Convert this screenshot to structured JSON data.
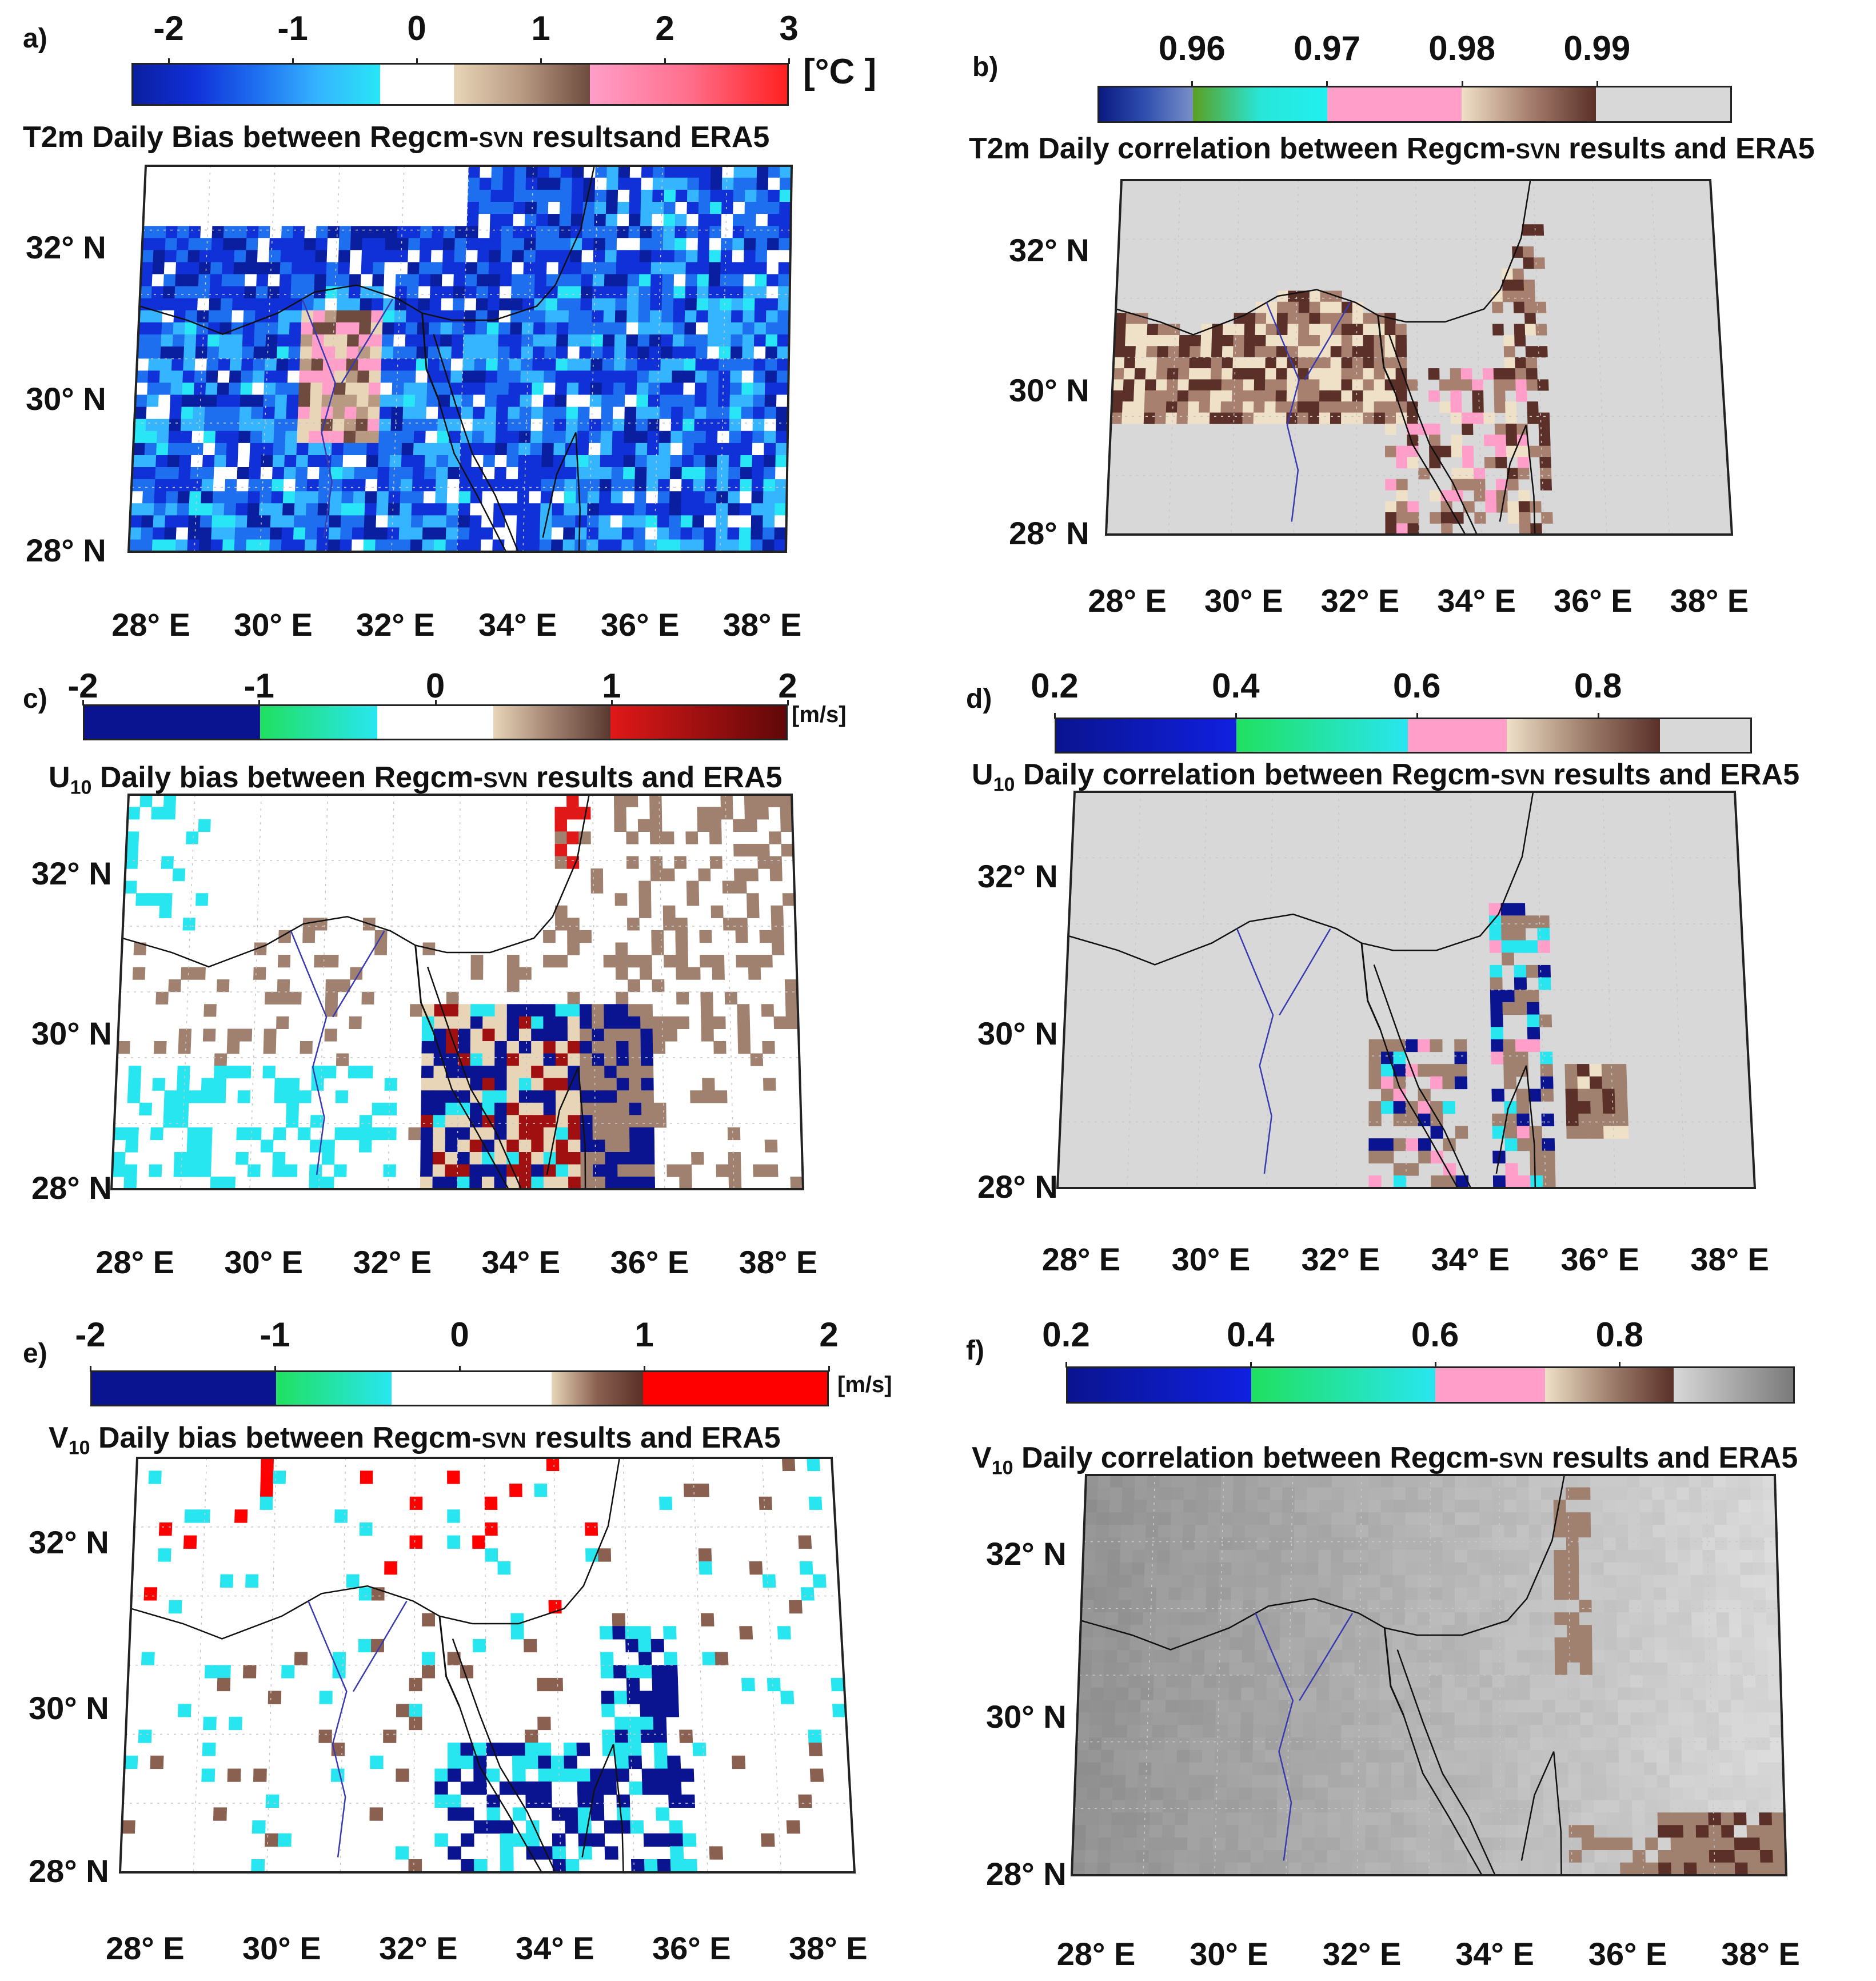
{
  "figure": {
    "panels": [
      {
        "id": "a",
        "label": "a)",
        "variable": "T2m",
        "title_pre": "T2m Daily Bias  between  Regcm-",
        "title_model": "SVN",
        "title_post": " resultsand ERA5",
        "colorbar": {
          "ticks": [
            "-2",
            "-1",
            "0",
            "1",
            "2",
            "3"
          ],
          "range": [
            -2.3,
            3
          ],
          "unit": "[°C ]",
          "segments": [
            {
              "from": -2.3,
              "to": -0.3,
              "colors": [
                "#0a1fa0",
                "#1030d8",
                "#1e6ff0",
                "#35b4ff",
                "#28e6f5"
              ]
            },
            {
              "from": -0.3,
              "to": 0.3,
              "colors": [
                "#ffffff"
              ]
            },
            {
              "from": 0.3,
              "to": 1.4,
              "colors": [
                "#e8d5b8",
                "#b89a82",
                "#6e4b3e"
              ]
            },
            {
              "from": 1.4,
              "to": 3,
              "colors": [
                "#ff9ec8",
                "#ff6f8c",
                "#ff2020"
              ]
            }
          ]
        },
        "background": "bias-blue"
      },
      {
        "id": "b",
        "label": "b)",
        "variable": "T2m",
        "title_pre": "T2m Daily correlation between Regcm-",
        "title_model": "SVN",
        "title_post": " results and ERA5",
        "colorbar": {
          "ticks": [
            "0.96",
            "0.97",
            "0.98",
            "0.99"
          ],
          "range": [
            0.953,
            1.0
          ],
          "unit": "",
          "segments": [
            {
              "from": 0.953,
              "to": 0.96,
              "colors": [
                "#0a1a80",
                "#3050b0",
                "#7a90c8"
              ]
            },
            {
              "from": 0.96,
              "to": 0.97,
              "colors": [
                "#5aa020",
                "#28e6d8",
                "#20f0f0"
              ]
            },
            {
              "from": 0.97,
              "to": 0.98,
              "colors": [
                "#ff9ec8"
              ]
            },
            {
              "from": 0.98,
              "to": 0.99,
              "colors": [
                "#efe0c8",
                "#a88070",
                "#5a3028"
              ]
            },
            {
              "from": 0.99,
              "to": 1.0,
              "colors": [
                "#d8d8d8"
              ]
            }
          ]
        },
        "background": "corr-grey"
      },
      {
        "id": "c",
        "label": "c)",
        "variable": "U10",
        "title_pre": "U",
        "title_sub": "10",
        "title_mid": " Daily bias between Regcm-",
        "title_model": "SVN",
        "title_post": " results and ERA5",
        "colorbar": {
          "ticks": [
            "-2",
            "-1",
            "0",
            "1",
            "2"
          ],
          "range": [
            -2,
            2
          ],
          "unit": "[m/s]",
          "segments": [
            {
              "from": -2,
              "to": -1,
              "colors": [
                "#0a1490"
              ]
            },
            {
              "from": -1,
              "to": -0.33,
              "colors": [
                "#20e060",
                "#28e6f0"
              ]
            },
            {
              "from": -0.33,
              "to": 0.33,
              "colors": [
                "#ffffff"
              ]
            },
            {
              "from": 0.33,
              "to": 1,
              "colors": [
                "#e8d5b8",
                "#a0806e",
                "#5a3a30"
              ]
            },
            {
              "from": 1,
              "to": 2,
              "colors": [
                "#e01818",
                "#a01010",
                "#600808"
              ]
            }
          ]
        },
        "background": "bias-white"
      },
      {
        "id": "d",
        "label": "d)",
        "variable": "U10",
        "title_pre": "U",
        "title_sub": "10",
        "title_mid": " Daily correlation between Regcm-",
        "title_model": "SVN",
        "title_post": " results and ERA5",
        "colorbar": {
          "ticks": [
            "0.2",
            "0.4",
            "0.6",
            "0.8"
          ],
          "range": [
            0.2,
            0.97
          ],
          "unit": "",
          "segments": [
            {
              "from": 0.2,
              "to": 0.4,
              "colors": [
                "#0a1490",
                "#1020e0"
              ]
            },
            {
              "from": 0.4,
              "to": 0.59,
              "colors": [
                "#20e060",
                "#28e6f0"
              ]
            },
            {
              "from": 0.59,
              "to": 0.7,
              "colors": [
                "#ff9ec8"
              ]
            },
            {
              "from": 0.7,
              "to": 0.87,
              "colors": [
                "#efe0c8",
                "#a0806e",
                "#5a3028"
              ]
            },
            {
              "from": 0.87,
              "to": 0.97,
              "colors": [
                "#d8d8d8"
              ]
            }
          ]
        },
        "background": "corr-grey"
      },
      {
        "id": "e",
        "label": "e)",
        "variable": "V10",
        "title_pre": "V",
        "title_sub": "10",
        "title_mid": " Daily bias between Regcm-",
        "title_model": "SVN",
        "title_post": " results and ERA5",
        "colorbar": {
          "ticks": [
            "-2",
            "-1",
            "0",
            "1",
            "2"
          ],
          "range": [
            -2,
            2
          ],
          "unit": "[m/s]",
          "segments": [
            {
              "from": -2,
              "to": -1,
              "colors": [
                "#0a1490"
              ]
            },
            {
              "from": -1,
              "to": -0.37,
              "colors": [
                "#20e060",
                "#28e6f0"
              ]
            },
            {
              "from": -0.37,
              "to": 0.5,
              "colors": [
                "#ffffff"
              ]
            },
            {
              "from": 0.5,
              "to": 1,
              "colors": [
                "#e8d5b8",
                "#8a6050",
                "#5a3028"
              ]
            },
            {
              "from": 1,
              "to": 2,
              "colors": [
                "#ff0000"
              ]
            }
          ]
        },
        "background": "bias-white"
      },
      {
        "id": "f",
        "label": "f)",
        "variable": "V10",
        "title_pre": "V",
        "title_sub": "10",
        "title_mid": " Daily correlation between Regcm-",
        "title_model": "SVN",
        "title_post": " results and ERA5",
        "colorbar": {
          "ticks": [
            "0.2",
            "0.4",
            "0.6",
            "0.8"
          ],
          "range": [
            0.2,
            0.99
          ],
          "unit": "",
          "segments": [
            {
              "from": 0.2,
              "to": 0.4,
              "colors": [
                "#0a1490",
                "#1020e0"
              ]
            },
            {
              "from": 0.4,
              "to": 0.6,
              "colors": [
                "#20e060",
                "#28e6f0"
              ]
            },
            {
              "from": 0.6,
              "to": 0.72,
              "colors": [
                "#ff9ec8"
              ]
            },
            {
              "from": 0.72,
              "to": 0.86,
              "colors": [
                "#efe0c8",
                "#a0806e",
                "#5a3028"
              ]
            },
            {
              "from": 0.86,
              "to": 0.99,
              "colors": [
                "#d8d8d8",
                "#7a7a7a"
              ]
            }
          ]
        },
        "background": "corr-dark"
      }
    ],
    "lat_labels": [
      "32° N",
      "30° N",
      "28° N"
    ],
    "lon_labels": [
      "28° E",
      "30° E",
      "32° E",
      "34° E",
      "36° E",
      "38° E"
    ]
  }
}
